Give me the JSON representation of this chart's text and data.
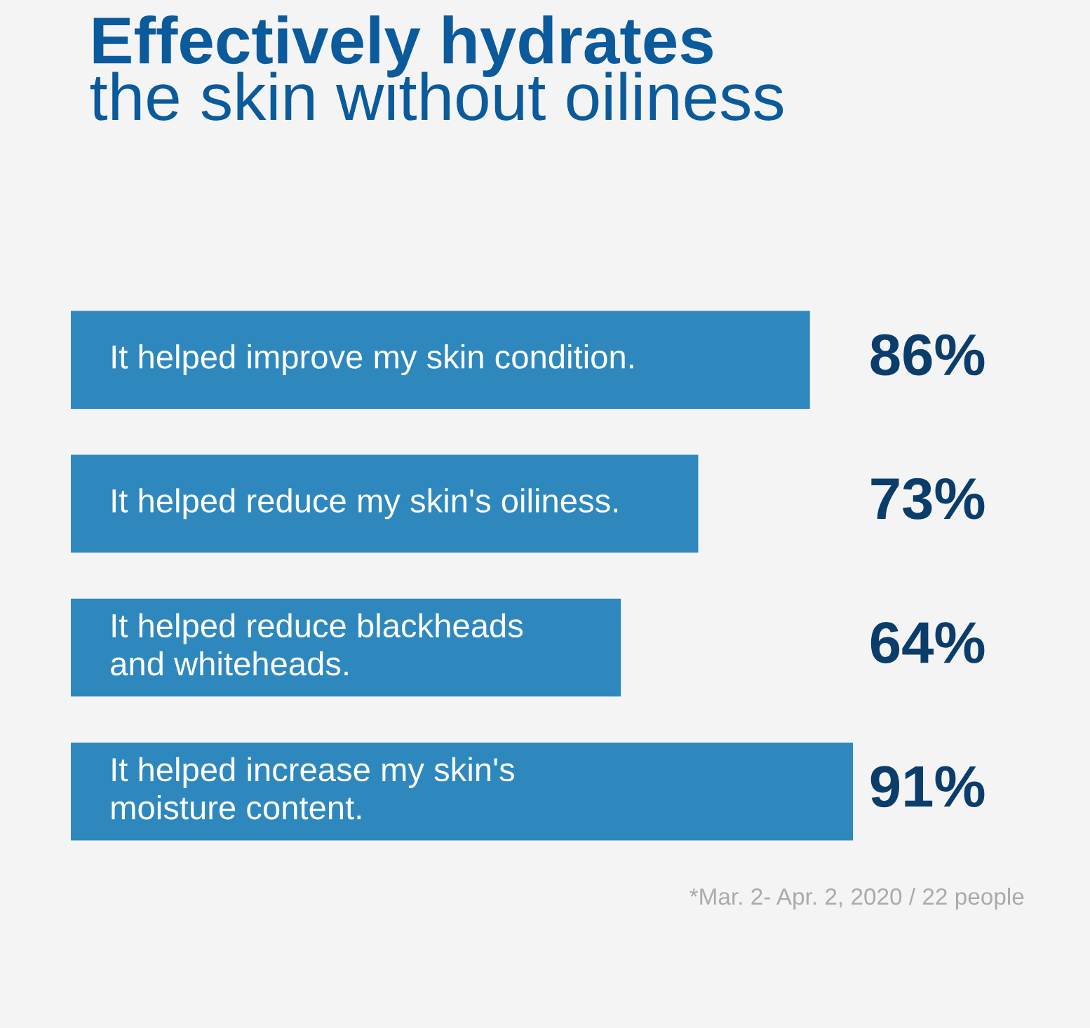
{
  "chart_data": {
    "type": "bar",
    "orientation": "horizontal",
    "title": "Effectively hydrates",
    "subtitle": "the skin without oiliness",
    "categories": [
      "It helped improve my skin condition.",
      "It helped reduce my skin's oiliness.",
      "It helped reduce blackheads\nand whiteheads.",
      "It helped increase my skin's\nmoisture content."
    ],
    "values": [
      86,
      73,
      64,
      91
    ],
    "color": "#2e88be",
    "value_labels": [
      "86%",
      "73%",
      "64%",
      "91%"
    ],
    "annotations": [
      "*Mar. 2- Apr. 2, 2020 / 22 people"
    ]
  }
}
